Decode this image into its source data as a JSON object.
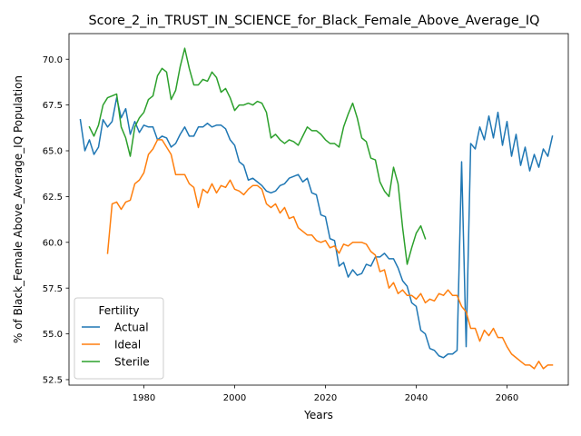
{
  "chart_data": {
    "type": "line",
    "title": "Score_2_in_TRUST_IN_SCIENCE_for_Black_Female_Above_Average_IQ",
    "xlabel": "Years",
    "ylabel": "% of Black_Female Above_Average_IQ Population",
    "xlim": [
      1963.5,
      2073.5
    ],
    "ylim": [
      52.2,
      71.4
    ],
    "xticks": [
      1980,
      2000,
      2020,
      2040,
      2060
    ],
    "yticks": [
      52.5,
      55.0,
      57.5,
      60.0,
      62.5,
      65.0,
      67.5,
      70.0
    ],
    "grid": false,
    "legend": {
      "title": "Fertility",
      "placement": "lower-left"
    },
    "series": [
      {
        "name": "Actual",
        "color": "#1f77b4",
        "x": [
          1966,
          1967,
          1968,
          1969,
          1970,
          1971,
          1972,
          1973,
          1974,
          1975,
          1976,
          1977,
          1978,
          1979,
          1980,
          1981,
          1982,
          1983,
          1984,
          1985,
          1986,
          1987,
          1988,
          1989,
          1990,
          1991,
          1992,
          1993,
          1994,
          1995,
          1996,
          1997,
          1998,
          1999,
          2000,
          2001,
          2002,
          2003,
          2004,
          2005,
          2006,
          2007,
          2008,
          2009,
          2010,
          2011,
          2012,
          2013,
          2014,
          2015,
          2016,
          2017,
          2018,
          2019,
          2020,
          2021,
          2022,
          2023,
          2024,
          2025,
          2026,
          2027,
          2028,
          2029,
          2030,
          2031,
          2032,
          2033,
          2034,
          2035,
          2036,
          2037,
          2038,
          2039,
          2040,
          2041,
          2042,
          2043,
          2044,
          2045,
          2046,
          2047,
          2048,
          2049,
          2050,
          2051,
          2052,
          2053,
          2054,
          2055,
          2056,
          2057,
          2058,
          2059,
          2060,
          2061,
          2062,
          2063,
          2064,
          2065,
          2066,
          2067,
          2068,
          2069,
          2070
        ],
        "y": [
          66.7,
          65.0,
          65.6,
          64.8,
          65.2,
          66.7,
          66.3,
          66.6,
          67.9,
          66.8,
          67.3,
          65.9,
          66.6,
          66.0,
          66.4,
          66.3,
          66.3,
          65.6,
          65.8,
          65.7,
          65.2,
          65.4,
          65.9,
          66.3,
          65.8,
          65.8,
          66.3,
          66.3,
          66.5,
          66.3,
          66.4,
          66.4,
          66.2,
          65.6,
          65.3,
          64.4,
          64.2,
          63.4,
          63.5,
          63.3,
          63.1,
          62.8,
          62.7,
          62.8,
          63.1,
          63.2,
          63.5,
          63.6,
          63.7,
          63.3,
          63.5,
          62.7,
          62.6,
          61.5,
          61.4,
          60.2,
          60.1,
          58.7,
          58.9,
          58.1,
          58.5,
          58.2,
          58.3,
          58.8,
          58.7,
          59.2,
          59.2,
          59.4,
          59.1,
          59.1,
          58.6,
          57.9,
          57.6,
          56.7,
          56.5,
          55.2,
          55.0,
          54.2,
          54.1,
          53.8,
          53.7,
          53.9,
          53.9,
          54.1,
          64.4,
          54.3,
          65.4,
          65.1,
          66.3,
          65.6,
          66.9,
          65.7,
          67.1,
          65.3,
          66.6,
          64.7,
          65.9,
          64.2,
          65.2,
          63.9,
          64.8,
          64.1,
          65.1,
          64.7,
          65.8
        ]
      },
      {
        "name": "Ideal",
        "color": "#ff7f0e",
        "x": [
          1972,
          1973,
          1974,
          1975,
          1976,
          1977,
          1978,
          1979,
          1980,
          1981,
          1982,
          1983,
          1984,
          1985,
          1986,
          1987,
          1988,
          1989,
          1990,
          1991,
          1992,
          1993,
          1994,
          1995,
          1996,
          1997,
          1998,
          1999,
          2000,
          2001,
          2002,
          2003,
          2004,
          2005,
          2006,
          2007,
          2008,
          2009,
          2010,
          2011,
          2012,
          2013,
          2014,
          2015,
          2016,
          2017,
          2018,
          2019,
          2020,
          2021,
          2022,
          2023,
          2024,
          2025,
          2026,
          2027,
          2028,
          2029,
          2030,
          2031,
          2032,
          2033,
          2034,
          2035,
          2036,
          2037,
          2038,
          2039,
          2040,
          2041,
          2042,
          2043,
          2044,
          2045,
          2046,
          2047,
          2048,
          2049,
          2050,
          2051,
          2052,
          2053,
          2054,
          2055,
          2056,
          2057,
          2058,
          2059,
          2060,
          2061,
          2062,
          2063,
          2064,
          2065,
          2066,
          2067,
          2068,
          2069,
          2070
        ],
        "y": [
          59.4,
          62.1,
          62.2,
          61.8,
          62.2,
          62.3,
          63.2,
          63.4,
          63.8,
          64.8,
          65.1,
          65.6,
          65.6,
          65.2,
          64.8,
          63.7,
          63.7,
          63.7,
          63.2,
          63.0,
          61.9,
          62.9,
          62.7,
          63.2,
          62.7,
          63.1,
          63.0,
          63.4,
          62.9,
          62.8,
          62.6,
          62.9,
          63.1,
          63.1,
          62.9,
          62.1,
          61.9,
          62.1,
          61.6,
          61.9,
          61.3,
          61.4,
          60.8,
          60.6,
          60.4,
          60.4,
          60.1,
          60.0,
          60.1,
          59.7,
          59.8,
          59.4,
          59.9,
          59.8,
          60.0,
          60.0,
          60.0,
          59.9,
          59.5,
          59.3,
          58.4,
          58.5,
          57.5,
          57.8,
          57.2,
          57.4,
          57.1,
          57.1,
          56.9,
          57.2,
          56.7,
          56.9,
          56.8,
          57.2,
          57.1,
          57.4,
          57.1,
          57.1,
          56.5,
          56.2,
          55.3,
          55.3,
          54.6,
          55.2,
          54.9,
          55.3,
          54.8,
          54.8,
          54.3,
          53.9,
          53.7,
          53.5,
          53.3,
          53.3,
          53.1,
          53.5,
          53.1,
          53.3,
          53.3
        ]
      },
      {
        "name": "Sterile",
        "color": "#2ca02c",
        "x": [
          1968,
          1969,
          1970,
          1971,
          1972,
          1973,
          1974,
          1975,
          1976,
          1977,
          1978,
          1979,
          1980,
          1981,
          1982,
          1983,
          1984,
          1985,
          1986,
          1987,
          1988,
          1989,
          1990,
          1991,
          1992,
          1993,
          1994,
          1995,
          1996,
          1997,
          1998,
          1999,
          2000,
          2001,
          2002,
          2003,
          2004,
          2005,
          2006,
          2007,
          2008,
          2009,
          2010,
          2011,
          2012,
          2013,
          2014,
          2015,
          2016,
          2017,
          2018,
          2019,
          2020,
          2021,
          2022,
          2023,
          2024,
          2025,
          2026,
          2027,
          2028,
          2029,
          2030,
          2031,
          2032,
          2033,
          2034,
          2035,
          2036,
          2037,
          2038,
          2039,
          2040,
          2041,
          2042
        ],
        "y": [
          66.3,
          65.8,
          66.4,
          67.5,
          67.9,
          68.0,
          68.1,
          66.3,
          65.7,
          64.7,
          66.3,
          66.8,
          67.1,
          67.8,
          68.0,
          69.1,
          69.5,
          69.3,
          67.8,
          68.3,
          69.6,
          70.6,
          69.5,
          68.6,
          68.6,
          68.9,
          68.8,
          69.3,
          69.0,
          68.2,
          68.4,
          67.9,
          67.2,
          67.5,
          67.5,
          67.6,
          67.5,
          67.7,
          67.6,
          67.1,
          65.7,
          65.9,
          65.6,
          65.4,
          65.6,
          65.5,
          65.3,
          65.8,
          66.3,
          66.1,
          66.1,
          65.9,
          65.6,
          65.4,
          65.4,
          65.2,
          66.3,
          67.0,
          67.6,
          66.8,
          65.7,
          65.5,
          64.6,
          64.5,
          63.3,
          62.8,
          62.5,
          64.1,
          63.2,
          60.8,
          58.8,
          59.7,
          60.5,
          60.9,
          60.2
        ]
      }
    ]
  }
}
